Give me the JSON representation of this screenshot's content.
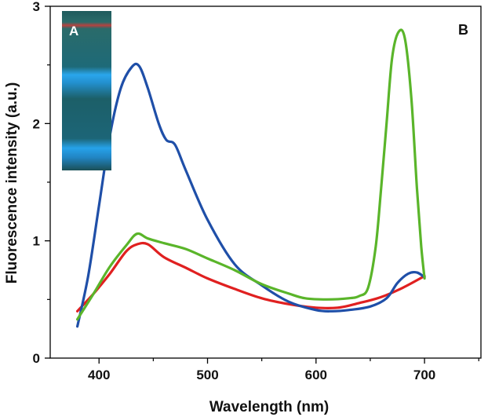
{
  "chart_data": {
    "type": "line",
    "xlabel": "Wavelength (nm)",
    "ylabel": "Fluorescence intensity (a.u.)",
    "xlim": [
      355,
      752
    ],
    "ylim": [
      0,
      3
    ],
    "x_ticks": [
      400,
      500,
      600,
      700
    ],
    "y_ticks": [
      0,
      1,
      2,
      3
    ],
    "grid": false,
    "legend": "none",
    "panel_label": "B",
    "inset": {
      "label": "A",
      "description_colors": {
        "background": "#1c5a5e",
        "red_band": "#c0393e",
        "blue_band": "#28a8f0"
      }
    },
    "series": [
      {
        "color": "#e02020",
        "points": [
          [
            380,
            0.4
          ],
          [
            395,
            0.55
          ],
          [
            410,
            0.72
          ],
          [
            425,
            0.91
          ],
          [
            435,
            0.97
          ],
          [
            445,
            0.97
          ],
          [
            460,
            0.86
          ],
          [
            480,
            0.77
          ],
          [
            500,
            0.68
          ],
          [
            525,
            0.59
          ],
          [
            550,
            0.51
          ],
          [
            575,
            0.46
          ],
          [
            600,
            0.43
          ],
          [
            620,
            0.43
          ],
          [
            640,
            0.47
          ],
          [
            660,
            0.52
          ],
          [
            680,
            0.6
          ],
          [
            700,
            0.7
          ]
        ]
      },
      {
        "color": "#1f4fa8",
        "points": [
          [
            380,
            0.27
          ],
          [
            390,
            0.7
          ],
          [
            400,
            1.3
          ],
          [
            410,
            1.9
          ],
          [
            420,
            2.3
          ],
          [
            430,
            2.48
          ],
          [
            437,
            2.49
          ],
          [
            445,
            2.3
          ],
          [
            455,
            2.0
          ],
          [
            462,
            1.86
          ],
          [
            470,
            1.82
          ],
          [
            480,
            1.6
          ],
          [
            500,
            1.18
          ],
          [
            525,
            0.8
          ],
          [
            550,
            0.62
          ],
          [
            575,
            0.48
          ],
          [
            600,
            0.41
          ],
          [
            615,
            0.4
          ],
          [
            630,
            0.41
          ],
          [
            650,
            0.44
          ],
          [
            665,
            0.51
          ],
          [
            675,
            0.64
          ],
          [
            685,
            0.72
          ],
          [
            693,
            0.73
          ],
          [
            700,
            0.69
          ]
        ]
      },
      {
        "color": "#5ab52a",
        "points": [
          [
            380,
            0.33
          ],
          [
            395,
            0.55
          ],
          [
            410,
            0.78
          ],
          [
            425,
            0.96
          ],
          [
            435,
            1.06
          ],
          [
            445,
            1.02
          ],
          [
            460,
            0.98
          ],
          [
            480,
            0.93
          ],
          [
            500,
            0.85
          ],
          [
            525,
            0.75
          ],
          [
            550,
            0.63
          ],
          [
            575,
            0.55
          ],
          [
            590,
            0.51
          ],
          [
            610,
            0.5
          ],
          [
            630,
            0.51
          ],
          [
            640,
            0.53
          ],
          [
            648,
            0.6
          ],
          [
            655,
            0.95
          ],
          [
            660,
            1.45
          ],
          [
            665,
            2.0
          ],
          [
            670,
            2.55
          ],
          [
            676,
            2.78
          ],
          [
            682,
            2.72
          ],
          [
            688,
            2.2
          ],
          [
            693,
            1.45
          ],
          [
            697,
            0.95
          ],
          [
            700,
            0.68
          ]
        ]
      }
    ]
  }
}
